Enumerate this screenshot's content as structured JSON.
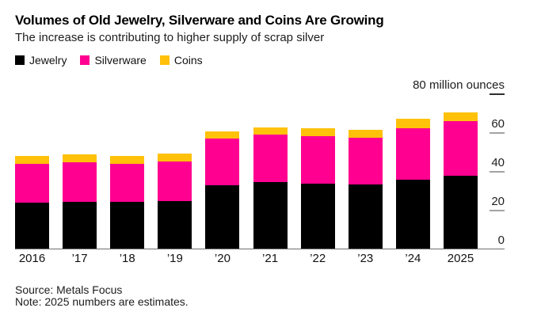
{
  "header": {
    "title": "Volumes of Old Jewelry, Silverware and Coins Are Growing",
    "subtitle": "The increase is contributing to higher supply of scrap silver"
  },
  "legend": {
    "items": [
      {
        "label": "Jewelry",
        "color": "#000000"
      },
      {
        "label": "Silverware",
        "color": "#ff0090"
      },
      {
        "label": "Coins",
        "color": "#ffc10a"
      }
    ]
  },
  "y_axis": {
    "unit_label": "80 million ounces",
    "tick_values": [
      0,
      20,
      40,
      60,
      80
    ],
    "top_tick_value": 80,
    "top_tick_color": "#2e2e2e",
    "tick_color": "#a3a3a3"
  },
  "chart_data": {
    "type": "bar",
    "stacked": true,
    "title": "Volumes of Old Jewelry, Silverware and Coins Are Growing",
    "subtitle": "The increase is contributing to higher supply of scrap silver",
    "unit": "million ounces",
    "categories": [
      "2016",
      "’17",
      "’18",
      "’19",
      "’20",
      "’21",
      "’22",
      "’23",
      "’24",
      "2025"
    ],
    "series": [
      {
        "name": "Jewelry",
        "color": "#000000",
        "values": [
          24,
          24.5,
          24.5,
          25,
          33,
          34.5,
          34,
          33.5,
          36,
          38
        ]
      },
      {
        "name": "Silverware",
        "color": "#ff0090",
        "values": [
          20,
          20.5,
          19.5,
          20.5,
          24,
          24.5,
          24.5,
          24,
          26.5,
          28
        ]
      },
      {
        "name": "Coins",
        "color": "#ffc10a",
        "values": [
          4,
          4,
          4,
          4,
          4,
          4,
          4,
          4,
          5,
          4.5
        ]
      }
    ],
    "totals": [
      48,
      49,
      48,
      49.5,
      61,
      63,
      62.5,
      61.5,
      67.5,
      70.5
    ],
    "ylim": [
      0,
      80
    ],
    "grid": false,
    "legend_position": "top-left"
  },
  "footer": {
    "source": "Source: Metals Focus",
    "note": "Note: 2025 numbers are estimates."
  }
}
